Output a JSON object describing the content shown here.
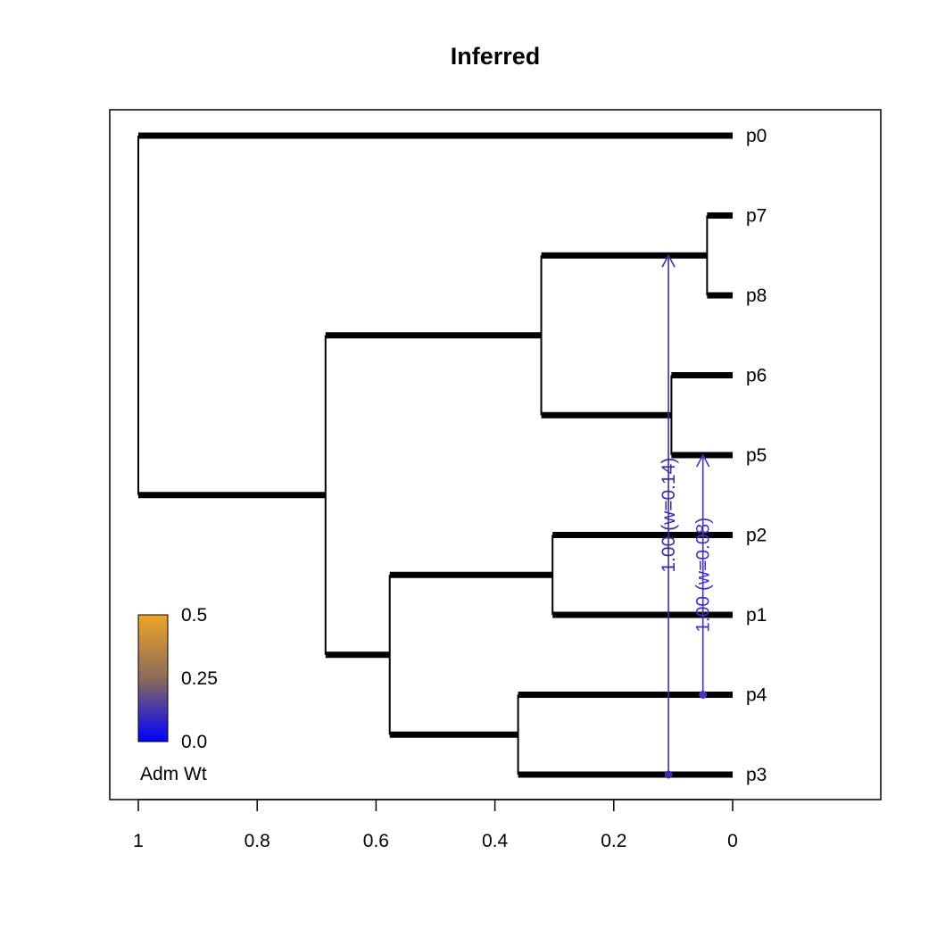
{
  "chart_data": {
    "type": "tree",
    "title": "Inferred",
    "x_axis": {
      "reversed": true,
      "xlim": [
        0,
        1
      ],
      "ticks": [
        1,
        0.8,
        0.6,
        0.4,
        0.2,
        0
      ],
      "tick_labels": [
        "1",
        "0.8",
        "0.6",
        "0.4",
        "0.2",
        "0"
      ]
    },
    "tips": [
      "p0",
      "p7",
      "p8",
      "p6",
      "p5",
      "p2",
      "p1",
      "p4",
      "p3"
    ],
    "tree": {
      "height": 1.0,
      "children": [
        {
          "tip": "p0"
        },
        {
          "height": 0.685,
          "children": [
            {
              "height": 0.322,
              "children": [
                {
                  "height": 0.043,
                  "children": [
                    {
                      "tip": "p7"
                    },
                    {
                      "tip": "p8"
                    }
                  ]
                },
                {
                  "height": 0.103,
                  "children": [
                    {
                      "tip": "p6"
                    },
                    {
                      "tip": "p5"
                    }
                  ]
                }
              ]
            },
            {
              "height": 0.577,
              "children": [
                {
                  "height": 0.303,
                  "children": [
                    {
                      "tip": "p2"
                    },
                    {
                      "tip": "p1"
                    }
                  ]
                },
                {
                  "height": 0.361,
                  "children": [
                    {
                      "tip": "p4"
                    },
                    {
                      "tip": "p3"
                    }
                  ]
                }
              ]
            }
          ]
        }
      ]
    },
    "migrations": [
      {
        "from": "p3",
        "from_height": 0.108,
        "to": "p7,p8 ancestor",
        "to_height": 0.108,
        "label": "1.00 (w=0.14)",
        "weight": 0.14,
        "color": "#3d2fa3"
      },
      {
        "from": "p4",
        "from_height": 0.05,
        "to": "p5",
        "to_height": 0.05,
        "label": "1.00 (w=0.08)",
        "weight": 0.08,
        "color": "#4533c3"
      }
    ],
    "legend": {
      "title": "Adm Wt",
      "tick_labels": [
        "0.5",
        "0.25",
        "0.0"
      ],
      "range": [
        0,
        0.5
      ],
      "colors": [
        "#0000ff",
        "#8b6b5a",
        "#f0a526"
      ],
      "position": "bottom-left"
    }
  }
}
